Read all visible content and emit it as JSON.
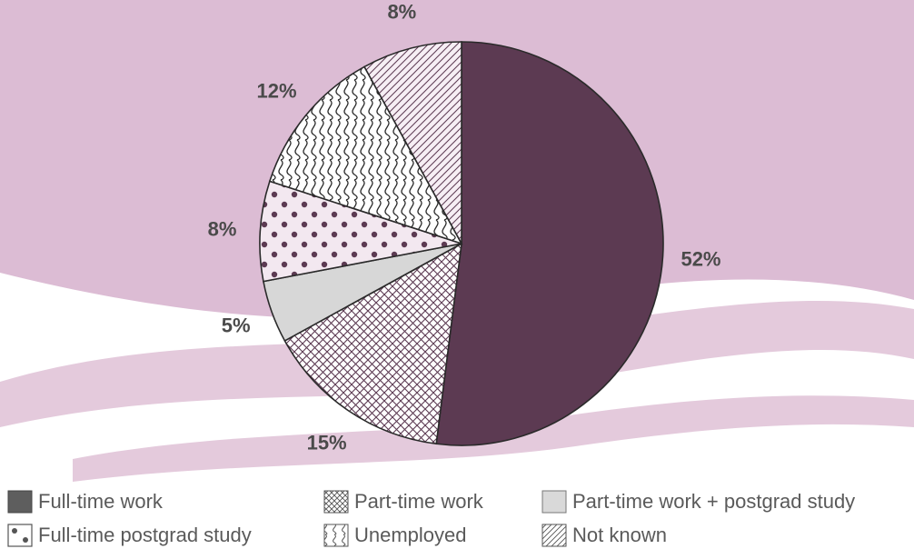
{
  "chart_data": {
    "type": "pie",
    "title": "",
    "start": "top",
    "direction": "clockwise",
    "slices": [
      {
        "label": "Full-time work",
        "value": 52,
        "display": "52%",
        "pattern": "solid"
      },
      {
        "label": "Part-time work",
        "value": 15,
        "display": "15%",
        "pattern": "crosshatch"
      },
      {
        "label": "Part-time work + postgrad study",
        "value": 5,
        "display": "5%",
        "pattern": "light"
      },
      {
        "label": "Full-time postgrad study",
        "value": 8,
        "display": "8%",
        "pattern": "dots"
      },
      {
        "label": "Unemployed",
        "value": 12,
        "display": "12%",
        "pattern": "wavy"
      },
      {
        "label": "Not known",
        "value": 8,
        "display": "8%",
        "pattern": "diagonal"
      }
    ],
    "legend": {
      "placement": "bottom",
      "rows": [
        [
          "Full-time work",
          "Part-time work",
          "Part-time work + postgrad study"
        ],
        [
          "Full-time postgrad study",
          "Unemployed",
          "Not known"
        ]
      ]
    }
  },
  "colors": {
    "background": "#dcbcd4",
    "swoosh": "#ffffff",
    "swoosh_accent": "#e4cadc",
    "dark_slice": "#5c3a52",
    "outline": "#2a2a2a",
    "light_slice": "#d7d7d7",
    "label": "#4a4a4a"
  }
}
